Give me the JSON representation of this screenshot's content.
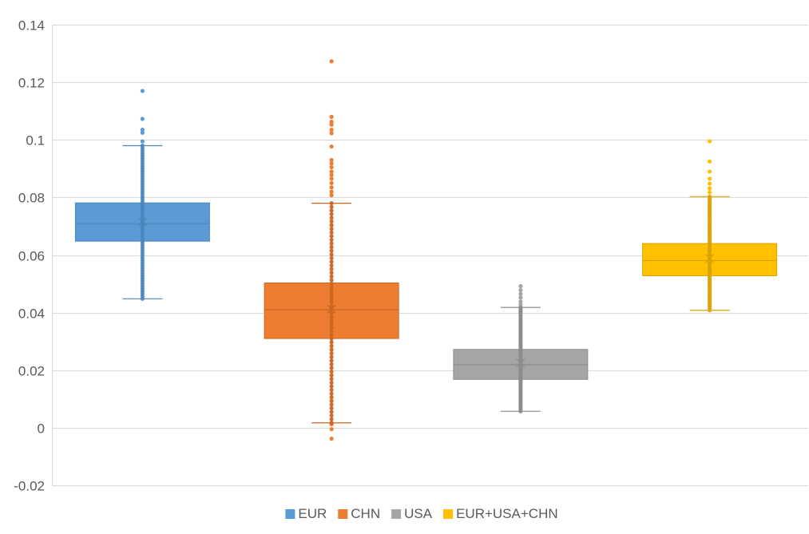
{
  "chart_data": {
    "type": "box",
    "title": "",
    "xlabel": "",
    "ylabel": "",
    "ylim": [
      -0.02,
      0.14
    ],
    "yticks": [
      {
        "value": -0.02,
        "label": "-0.02"
      },
      {
        "value": 0,
        "label": "0"
      },
      {
        "value": 0.02,
        "label": "0.02"
      },
      {
        "value": 0.04,
        "label": "0.04"
      },
      {
        "value": 0.06,
        "label": "0.06"
      },
      {
        "value": 0.08,
        "label": "0.08"
      },
      {
        "value": 0.1,
        "label": "0.1"
      },
      {
        "value": 0.12,
        "label": "0.12"
      },
      {
        "value": 0.14,
        "label": "0.14"
      }
    ],
    "grid": true,
    "legend_position": "bottom",
    "series": [
      {
        "name": "EUR",
        "color": "#5b9bd5",
        "edge_color": "#4a86bd",
        "whisker_low": 0.0448,
        "q1": 0.0648,
        "median": 0.0709,
        "q3": 0.0781,
        "whisker_high": 0.098,
        "mean": 0.0715,
        "outliers": [
          0.1073,
          0.1035,
          0.1025,
          0.0995,
          0.117
        ]
      },
      {
        "name": "CHN",
        "color": "#ed7d31",
        "edge_color": "#c9661f",
        "whisker_low": 0.0017,
        "q1": 0.031,
        "median": 0.041,
        "q3": 0.0503,
        "whisker_high": 0.078,
        "mean": 0.0412,
        "outliers": [
          0.1273,
          0.108,
          0.1063,
          0.1053,
          0.1035,
          0.1023,
          0.0977,
          0.093,
          0.0918,
          0.0905,
          0.089,
          0.0878,
          0.0865,
          0.085,
          0.0835,
          0.082,
          0.0808,
          0.0012,
          -0.0005,
          -0.0038
        ]
      },
      {
        "name": "USA",
        "color": "#a5a5a5",
        "edge_color": "#8c8c8c",
        "whisker_low": 0.0057,
        "q1": 0.0168,
        "median": 0.0219,
        "q3": 0.0272,
        "whisker_high": 0.0418,
        "mean": 0.0225,
        "outliers": [
          0.0492,
          0.0478,
          0.0465,
          0.0452,
          0.0438,
          0.0428
        ]
      },
      {
        "name": "EUR+USA+CHN",
        "color": "#ffc000",
        "edge_color": "#d9a300",
        "whisker_low": 0.0408,
        "q1": 0.0528,
        "median": 0.0581,
        "q3": 0.064,
        "whisker_high": 0.0803,
        "mean": 0.0588,
        "outliers": [
          0.0995,
          0.0925,
          0.089,
          0.0865,
          0.0848,
          0.0832,
          0.0818
        ]
      }
    ]
  }
}
